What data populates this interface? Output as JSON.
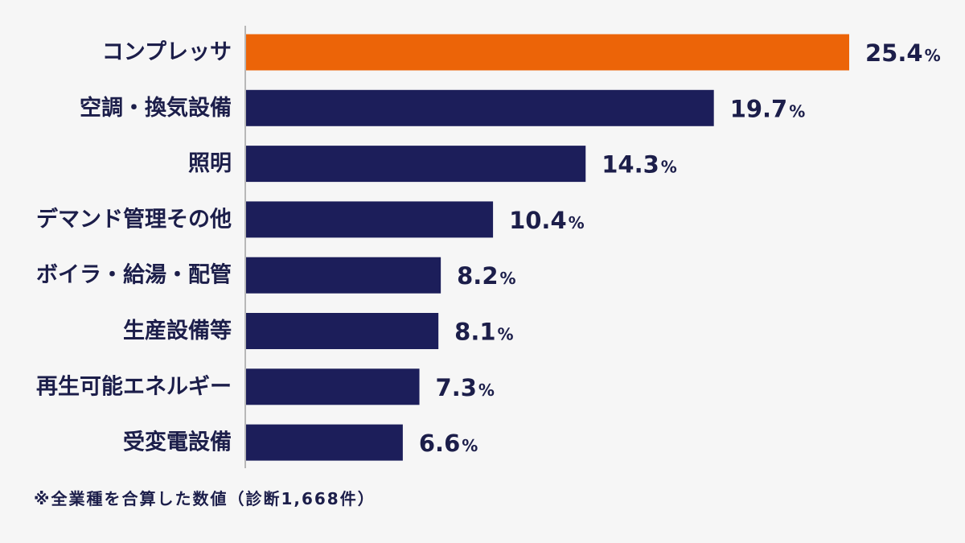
{
  "chart_data": {
    "type": "bar",
    "orientation": "horizontal",
    "categories": [
      "コンプレッサ",
      "空調・換気設備",
      "照明",
      "デマンド管理その他",
      "ボイラ・給湯・配管",
      "生産設備等",
      "再生可能エネルギー",
      "受変電設備"
    ],
    "values": [
      25.4,
      19.7,
      14.3,
      10.4,
      8.2,
      8.1,
      7.3,
      6.6
    ],
    "value_labels": [
      "25.4",
      "19.7",
      "14.3",
      "10.4",
      "8.2",
      "8.1",
      "7.3",
      "6.6"
    ],
    "value_suffix": "%",
    "xlim": [
      0,
      25.4
    ],
    "grid": false,
    "legend": "none",
    "colors": {
      "highlight": "#ec6408",
      "bar": "#1c1e5a",
      "text": "#1c1e4a",
      "axis": "#b8b8b8",
      "background": "#f6f6f6"
    },
    "highlight_index": 0
  },
  "footnote": "※全業種を合算した数値（診断1,668件）"
}
